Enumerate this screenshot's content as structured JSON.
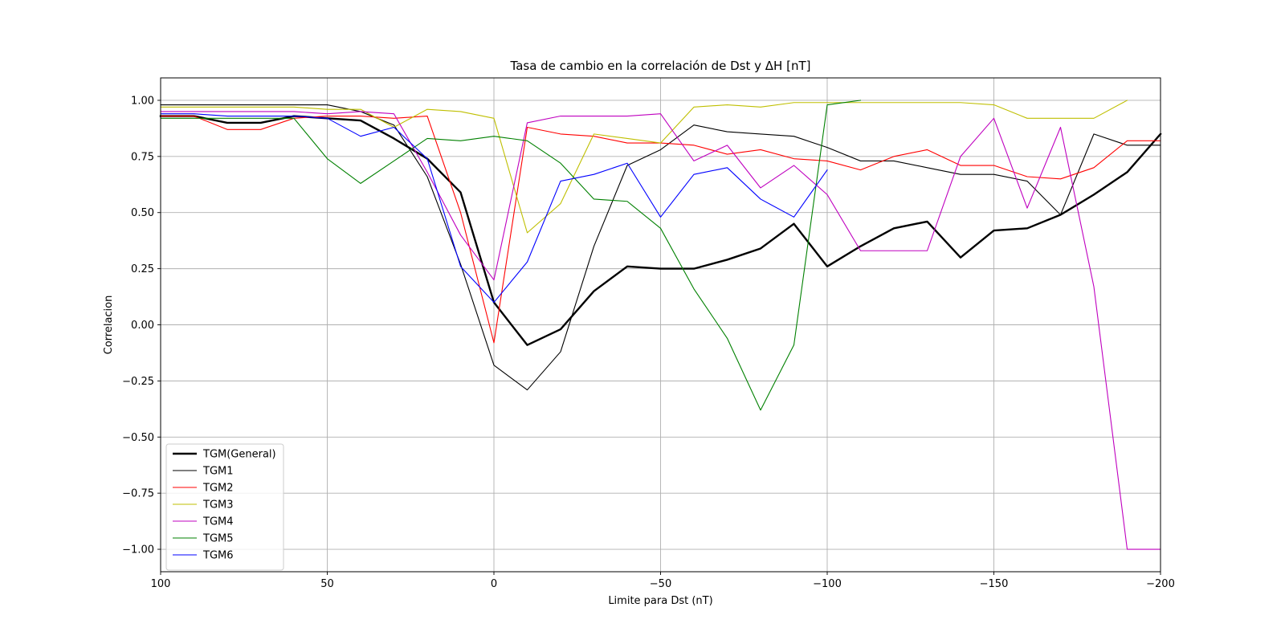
{
  "chart_data": {
    "type": "line",
    "title": "Tasa de cambio en la correlación de Dst y ΔH [nT]",
    "xlabel": "Limite para Dst (nT)",
    "ylabel": "Correlacion",
    "xlim": [
      100,
      -200
    ],
    "ylim": [
      -1.1,
      1.1
    ],
    "x_inverted": true,
    "grid": true,
    "legend_position": "lower-left",
    "x_ticks": [
      100,
      50,
      0,
      -50,
      -100,
      -150,
      -200
    ],
    "x_tick_labels": [
      "100",
      "50",
      "0",
      "−50",
      "−100",
      "−150",
      "−200"
    ],
    "y_ticks": [
      -1.0,
      -0.75,
      -0.5,
      -0.25,
      0.0,
      0.25,
      0.5,
      0.75,
      1.0
    ],
    "y_tick_labels": [
      "−1.00",
      "−0.75",
      "−0.50",
      "−0.25",
      "0.00",
      "0.25",
      "0.50",
      "0.75",
      "1.00"
    ],
    "series": [
      {
        "name": "TGM(General)",
        "color": "#000000",
        "width": 2.4,
        "x": [
          100,
          90,
          80,
          70,
          60,
          50,
          40,
          30,
          20,
          10,
          0,
          -10,
          -20,
          -30,
          -40,
          -50,
          -60,
          -70,
          -80,
          -90,
          -100,
          -110,
          -120,
          -130,
          -140,
          -150,
          -160,
          -170,
          -180,
          -190,
          -200
        ],
        "y": [
          0.93,
          0.93,
          0.9,
          0.9,
          0.93,
          0.92,
          0.91,
          0.83,
          0.74,
          0.59,
          0.1,
          -0.09,
          -0.02,
          0.15,
          0.26,
          0.25,
          0.25,
          0.29,
          0.34,
          0.45,
          0.26,
          0.35,
          0.43,
          0.46,
          0.3,
          0.42,
          0.43,
          0.49,
          0.58,
          0.68,
          0.85
        ]
      },
      {
        "name": "TGM1",
        "color": "#000000",
        "width": 1.1,
        "x": [
          100,
          90,
          80,
          70,
          60,
          50,
          40,
          30,
          20,
          10,
          0,
          -10,
          -20,
          -30,
          -40,
          -50,
          -60,
          -70,
          -80,
          -90,
          -100,
          -110,
          -120,
          -130,
          -140,
          -150,
          -160,
          -170,
          -180,
          -190,
          -200
        ],
        "y": [
          0.98,
          0.98,
          0.98,
          0.98,
          0.98,
          0.98,
          0.95,
          0.89,
          0.66,
          0.27,
          -0.18,
          -0.29,
          -0.12,
          0.35,
          0.71,
          0.78,
          0.89,
          0.86,
          0.85,
          0.84,
          0.79,
          0.73,
          0.73,
          0.7,
          0.67,
          0.67,
          0.64,
          0.49,
          0.85,
          0.8,
          0.8
        ]
      },
      {
        "name": "TGM2",
        "color": "#ff0000",
        "width": 1.1,
        "x": [
          100,
          90,
          80,
          70,
          60,
          50,
          40,
          30,
          20,
          10,
          0,
          -10,
          -20,
          -30,
          -40,
          -50,
          -60,
          -70,
          -80,
          -90,
          -100,
          -110,
          -120,
          -130,
          -140,
          -150,
          -160,
          -170,
          -180,
          -190,
          -200
        ],
        "y": [
          0.93,
          0.93,
          0.87,
          0.87,
          0.92,
          0.93,
          0.93,
          0.92,
          0.93,
          0.5,
          -0.08,
          0.88,
          0.85,
          0.84,
          0.81,
          0.81,
          0.8,
          0.76,
          0.78,
          0.74,
          0.73,
          0.69,
          0.75,
          0.78,
          0.71,
          0.71,
          0.66,
          0.65,
          0.7,
          0.82,
          0.82
        ]
      },
      {
        "name": "TGM3",
        "color": "#bfbf00",
        "width": 1.1,
        "x": [
          100,
          90,
          80,
          70,
          60,
          50,
          40,
          30,
          20,
          10,
          0,
          -10,
          -20,
          -30,
          -40,
          -50,
          -60,
          -70,
          -80,
          -90,
          -100,
          -110,
          -120,
          -130,
          -140,
          -150,
          -160,
          -170,
          -180,
          -190
        ],
        "y": [
          0.97,
          0.97,
          0.97,
          0.97,
          0.97,
          0.96,
          0.96,
          0.88,
          0.96,
          0.95,
          0.92,
          0.41,
          0.54,
          0.85,
          0.83,
          0.81,
          0.97,
          0.98,
          0.97,
          0.99,
          0.99,
          0.99,
          0.99,
          0.99,
          0.99,
          0.98,
          0.92,
          0.92,
          0.92,
          1.0
        ]
      },
      {
        "name": "TGM4",
        "color": "#bf00bf",
        "width": 1.1,
        "x": [
          100,
          90,
          80,
          70,
          60,
          50,
          40,
          30,
          20,
          10,
          0,
          -10,
          -20,
          -30,
          -40,
          -50,
          -60,
          -70,
          -80,
          -90,
          -100,
          -110,
          -120,
          -130,
          -140,
          -150,
          -160,
          -170,
          -180,
          -190,
          -200
        ],
        "y": [
          0.95,
          0.95,
          0.95,
          0.95,
          0.95,
          0.94,
          0.95,
          0.94,
          0.68,
          0.4,
          0.2,
          0.9,
          0.93,
          0.93,
          0.93,
          0.94,
          0.73,
          0.8,
          0.61,
          0.71,
          0.58,
          0.33,
          0.33,
          0.33,
          0.75,
          0.92,
          0.52,
          0.88,
          0.17,
          -1.0,
          -1.0
        ]
      },
      {
        "name": "TGM5",
        "color": "#008000",
        "width": 1.1,
        "x": [
          100,
          90,
          80,
          70,
          60,
          50,
          40,
          30,
          20,
          10,
          0,
          -10,
          -20,
          -30,
          -40,
          -50,
          -60,
          -70,
          -80,
          -90,
          -100,
          -110
        ],
        "y": [
          0.92,
          0.92,
          0.92,
          0.92,
          0.92,
          0.74,
          0.63,
          0.73,
          0.83,
          0.82,
          0.84,
          0.82,
          0.72,
          0.56,
          0.55,
          0.43,
          0.16,
          -0.06,
          -0.38,
          -0.09,
          0.98,
          1.0
        ]
      },
      {
        "name": "TGM6",
        "color": "#0000ff",
        "width": 1.1,
        "x": [
          100,
          90,
          80,
          70,
          60,
          50,
          40,
          30,
          20,
          10,
          0,
          -10,
          -20,
          -30,
          -40,
          -50,
          -60,
          -70,
          -80,
          -90,
          -100
        ],
        "y": [
          0.94,
          0.94,
          0.93,
          0.93,
          0.93,
          0.92,
          0.84,
          0.88,
          0.74,
          0.26,
          0.1,
          0.28,
          0.64,
          0.67,
          0.72,
          0.48,
          0.67,
          0.7,
          0.56,
          0.48,
          0.69
        ]
      }
    ]
  }
}
